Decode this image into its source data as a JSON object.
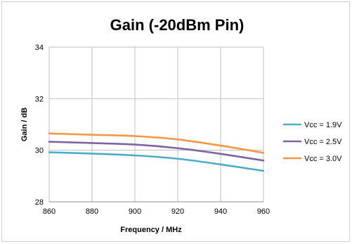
{
  "chart_data": {
    "type": "line",
    "title": "Gain (-20dBm Pin)",
    "xlabel": "Frequency / MHz",
    "ylabel": "Gain / dB",
    "xlim": [
      860,
      960
    ],
    "ylim": [
      28,
      34
    ],
    "x_ticks": [
      "860",
      "880",
      "900",
      "920",
      "940",
      "960"
    ],
    "y_ticks": [
      "28",
      "30",
      "32",
      "34"
    ],
    "grid": true,
    "legend_position": "right",
    "x": [
      860,
      880,
      900,
      920,
      940,
      960
    ],
    "series": [
      {
        "name": "Vcc = 1.9V",
        "color": "#4bacc6",
        "values": [
          29.92,
          29.87,
          29.8,
          29.67,
          29.45,
          29.2
        ]
      },
      {
        "name": "Vcc = 2.5V",
        "color": "#8064a2",
        "values": [
          30.33,
          30.28,
          30.22,
          30.08,
          29.86,
          29.6
        ]
      },
      {
        "name": "Vcc = 3.0V",
        "color": "#f79646",
        "values": [
          30.65,
          30.6,
          30.55,
          30.42,
          30.18,
          29.9
        ]
      }
    ]
  }
}
